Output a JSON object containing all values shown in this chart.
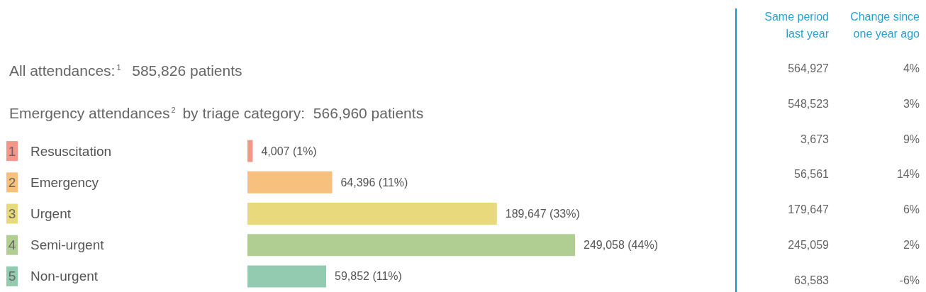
{
  "chart_data": [
    {
      "type": "bar",
      "orientation": "horizontal",
      "title": "All attendances:$^{1}$  585,826 patients",
      "subtitle": "Emergency attendances$^{2}$ by triage category:  566,960 patients",
      "categories": [
        "1 Resuscitation",
        "2 Emergency",
        "3 Urgent",
        "4 Semi-urgent",
        "5 Non-urgent"
      ],
      "values": [
        4007,
        64396,
        189647,
        249058,
        59852
      ],
      "colors": [
        "#f4968a",
        "#f8c07d",
        "#e8da7c",
        "#b0cd92",
        "#93cbb0"
      ],
      "value_labels": [
        "4,007 (1%)",
        "64,396 (11%)",
        "189,647 (33%)",
        "249,058 (44%)",
        "59,852 (11%)"
      ],
      "tick_labels": "y"
    },
    {
      "type": "other",
      "annotations": [
        "Same period last year",
        "Change since one year ago",
        "564,927",
        "4%",
        "548,523",
        "3%",
        "3,673",
        "9%",
        "56,561",
        "14%",
        "179,647",
        "6%",
        "245,059",
        "2%",
        "63,583",
        "-6%"
      ]
    }
  ]
}
